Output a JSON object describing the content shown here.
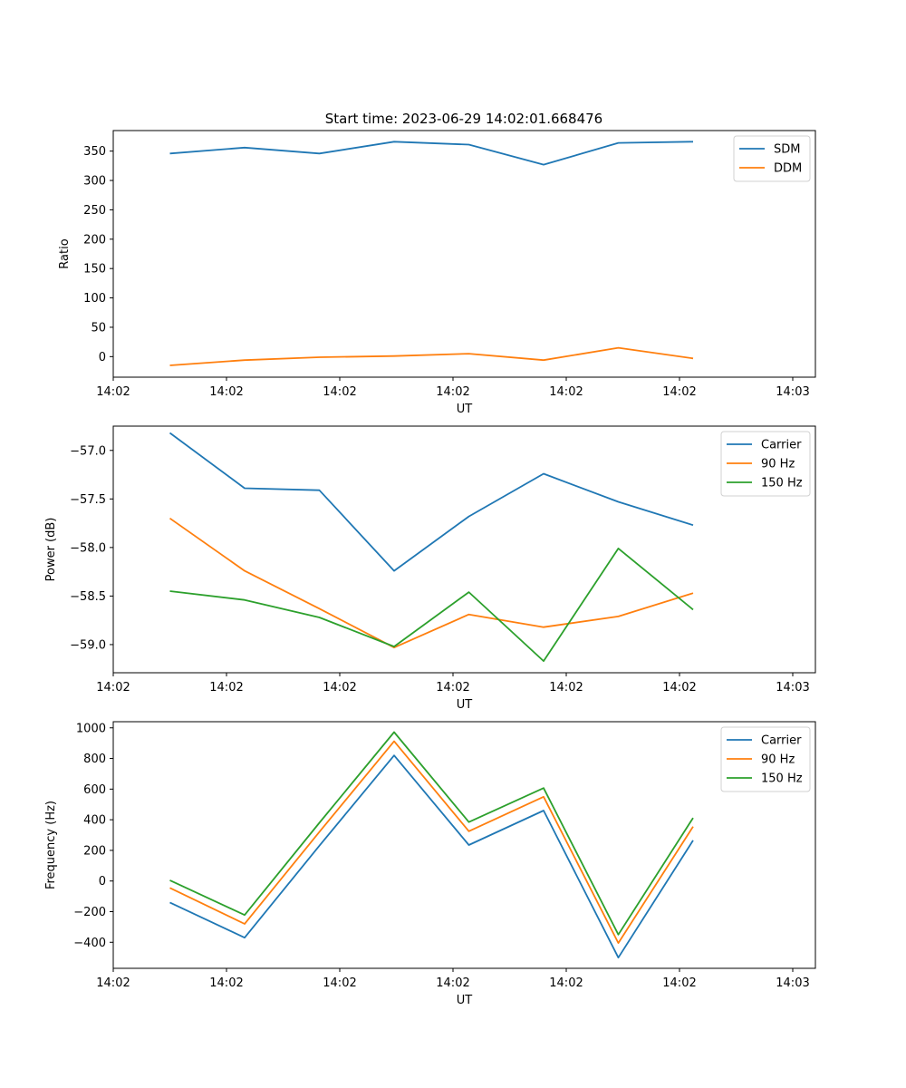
{
  "chart_data": [
    {
      "type": "line",
      "title": "Start time: 2023-06-29 14:02:01.668476",
      "xlabel": "UT",
      "ylabel": "Ratio",
      "xlim": [
        0,
        9.3
      ],
      "ylim": [
        -35,
        385
      ],
      "x_ticks": [
        {
          "value": 0,
          "label": "14:02"
        },
        {
          "value": 1.5,
          "label": "14:02"
        },
        {
          "value": 3,
          "label": "14:02"
        },
        {
          "value": 4.5,
          "label": "14:02"
        },
        {
          "value": 6,
          "label": "14:02"
        },
        {
          "value": 7.5,
          "label": "14:02"
        },
        {
          "value": 9,
          "label": "14:03"
        }
      ],
      "y_ticks": [
        0,
        50,
        100,
        150,
        200,
        250,
        300,
        350
      ],
      "x": [
        0.75,
        1.74,
        2.73,
        3.72,
        4.71,
        5.7,
        6.69,
        7.68
      ],
      "legend": "upper-right",
      "series": [
        {
          "name": "SDM",
          "color": "#1f77b4",
          "values": [
            346,
            356,
            346,
            366,
            361,
            327,
            364,
            366
          ]
        },
        {
          "name": "DDM",
          "color": "#ff7f0e",
          "values": [
            -15,
            -6,
            -1,
            1,
            5,
            -6,
            15,
            -3
          ]
        }
      ]
    },
    {
      "type": "line",
      "title": "",
      "xlabel": "UT",
      "ylabel": "Power (dB)",
      "xlim": [
        0,
        9.3
      ],
      "ylim": [
        -59.29,
        -56.75
      ],
      "x_ticks": [
        {
          "value": 0,
          "label": "14:02"
        },
        {
          "value": 1.5,
          "label": "14:02"
        },
        {
          "value": 3,
          "label": "14:02"
        },
        {
          "value": 4.5,
          "label": "14:02"
        },
        {
          "value": 6,
          "label": "14:02"
        },
        {
          "value": 7.5,
          "label": "14:02"
        },
        {
          "value": 9,
          "label": "14:03"
        }
      ],
      "y_ticks": [
        -57.0,
        -57.5,
        -58.0,
        -58.5,
        -59.0
      ],
      "y_tick_labels": [
        "−57.0",
        "−57.5",
        "−58.0",
        "−58.5",
        "−59.0"
      ],
      "x": [
        0.75,
        1.74,
        2.73,
        3.72,
        4.71,
        5.7,
        6.69,
        7.68
      ],
      "legend": "upper-right",
      "series": [
        {
          "name": "Carrier",
          "color": "#1f77b4",
          "values": [
            -56.82,
            -57.39,
            -57.41,
            -58.24,
            -57.68,
            -57.24,
            -57.53,
            -57.77
          ]
        },
        {
          "name": "90 Hz",
          "color": "#ff7f0e",
          "values": [
            -57.7,
            -58.24,
            -58.63,
            -59.03,
            -58.69,
            -58.82,
            -58.71,
            -58.47
          ]
        },
        {
          "name": "150 Hz",
          "color": "#2ca02c",
          "values": [
            -58.45,
            -58.54,
            -58.72,
            -59.02,
            -58.46,
            -59.17,
            -58.01,
            -58.64
          ]
        }
      ]
    },
    {
      "type": "line",
      "title": "",
      "xlabel": "UT",
      "ylabel": "Frequency (Hz)",
      "xlim": [
        0,
        9.3
      ],
      "ylim": [
        -570,
        1040
      ],
      "x_ticks": [
        {
          "value": 0,
          "label": "14:02"
        },
        {
          "value": 1.5,
          "label": "14:02"
        },
        {
          "value": 3,
          "label": "14:02"
        },
        {
          "value": 4.5,
          "label": "14:02"
        },
        {
          "value": 6,
          "label": "14:02"
        },
        {
          "value": 7.5,
          "label": "14:02"
        },
        {
          "value": 9,
          "label": "14:03"
        }
      ],
      "y_ticks": [
        1000,
        800,
        600,
        400,
        200,
        0,
        -200,
        -400
      ],
      "y_tick_labels": [
        "1000",
        "800",
        "600",
        "400",
        "200",
        "0",
        "−200",
        "−400"
      ],
      "x": [
        0.75,
        1.74,
        2.73,
        3.72,
        4.71,
        5.7,
        6.69,
        7.68
      ],
      "legend": "upper-right",
      "series": [
        {
          "name": "Carrier",
          "color": "#1f77b4",
          "values": [
            -140,
            -370,
            230,
            820,
            235,
            460,
            -500,
            265
          ]
        },
        {
          "name": "90 Hz",
          "color": "#ff7f0e",
          "values": [
            -45,
            -280,
            320,
            912,
            325,
            550,
            -405,
            355
          ]
        },
        {
          "name": "150 Hz",
          "color": "#2ca02c",
          "values": [
            5,
            -222,
            380,
            972,
            385,
            607,
            -350,
            412
          ]
        }
      ]
    }
  ]
}
